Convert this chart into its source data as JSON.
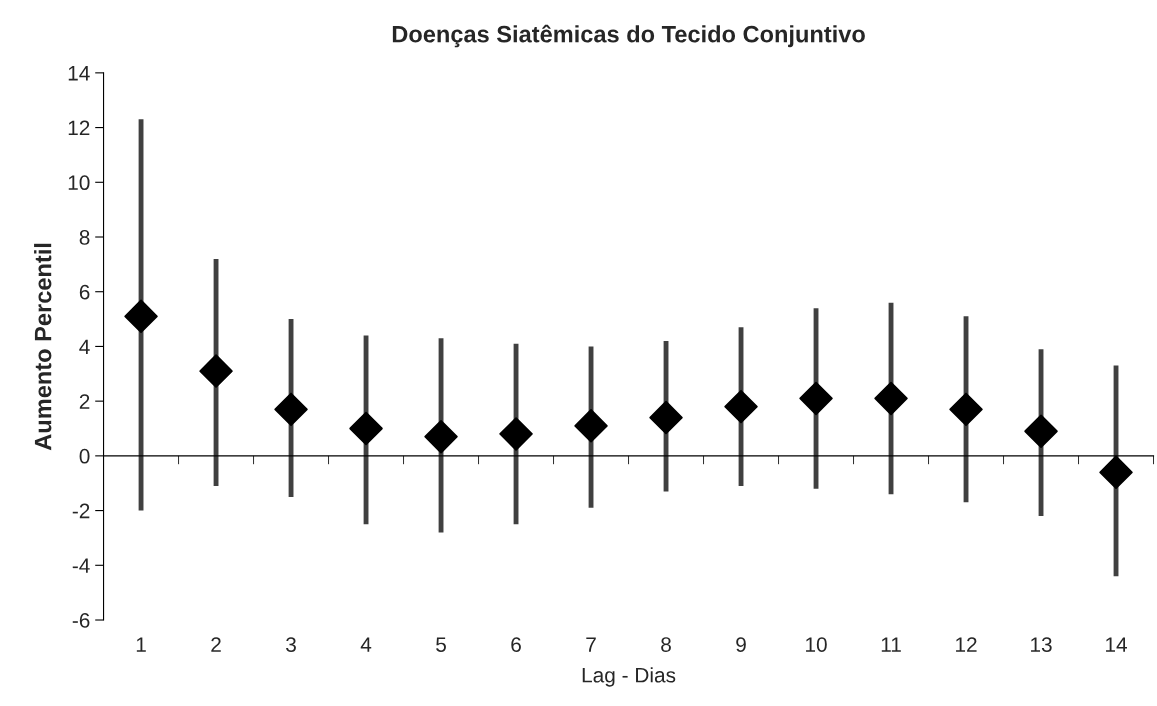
{
  "chart_data": {
    "type": "scatter",
    "title": "Doenças Siatêmicas do Tecido Conjuntivo",
    "xlabel": "Lag - Dias",
    "ylabel": "Aumento Percentil",
    "categories": [
      "1",
      "2",
      "3",
      "4",
      "5",
      "6",
      "7",
      "8",
      "9",
      "10",
      "11",
      "12",
      "13",
      "14"
    ],
    "values": [
      5.1,
      3.1,
      1.7,
      1.0,
      0.7,
      0.8,
      1.1,
      1.4,
      1.8,
      2.1,
      2.1,
      1.7,
      0.9,
      -0.6
    ],
    "errors": [
      [
        -2.0,
        12.3
      ],
      [
        -1.1,
        7.2
      ],
      [
        -1.5,
        5.0
      ],
      [
        -2.5,
        4.4
      ],
      [
        -2.8,
        4.3
      ],
      [
        -2.5,
        4.1
      ],
      [
        -1.9,
        4.0
      ],
      [
        -1.3,
        4.2
      ],
      [
        -1.1,
        4.7
      ],
      [
        -1.2,
        5.4
      ],
      [
        -1.4,
        5.6
      ],
      [
        -1.7,
        5.1
      ],
      [
        -2.2,
        3.9
      ],
      [
        -4.4,
        3.3
      ]
    ],
    "color": "#000000",
    "marker": "diamond",
    "ylim": [
      -6,
      14
    ],
    "yticks": [
      -6,
      -4,
      -2,
      0,
      2,
      4,
      6,
      8,
      10,
      12,
      14
    ],
    "grid": false,
    "legend": false
  }
}
